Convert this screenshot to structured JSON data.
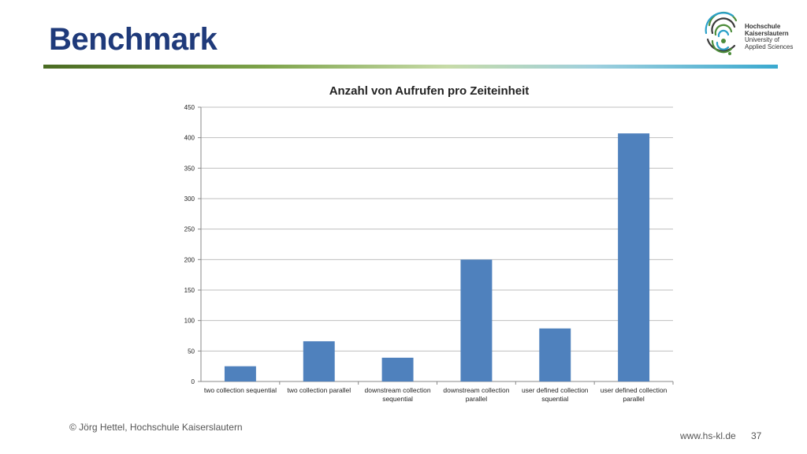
{
  "slide": {
    "title": "Benchmark",
    "footer_copyright": "© Jörg Hettel, Hochschule Kaiserslautern",
    "footer_url": "www.hs-kl.de",
    "page_number": "37"
  },
  "logo": {
    "line1": "Hochschule",
    "line2": "Kaiserslautern",
    "line3": "University of",
    "line4": "Applied Sciences"
  },
  "colors": {
    "title": "#1f3a7a",
    "bar": "#4f81bd",
    "grid": "#bfbfbf"
  },
  "chart_data": {
    "type": "bar",
    "title": "Anzahl von Aufrufen pro Zeiteinheit",
    "categories": [
      [
        "two collection sequential"
      ],
      [
        "two collection parallel"
      ],
      [
        "downstream collection",
        "sequential"
      ],
      [
        "downstream collection",
        "parallel"
      ],
      [
        "user defined collection",
        "squential"
      ],
      [
        "user defined collection",
        "parallel"
      ]
    ],
    "values": [
      25,
      66,
      39,
      200,
      87,
      407
    ],
    "ylim": [
      0,
      450
    ],
    "yticks": [
      0,
      50,
      100,
      150,
      200,
      250,
      300,
      350,
      400,
      450
    ],
    "grid": true,
    "legend": "none"
  }
}
